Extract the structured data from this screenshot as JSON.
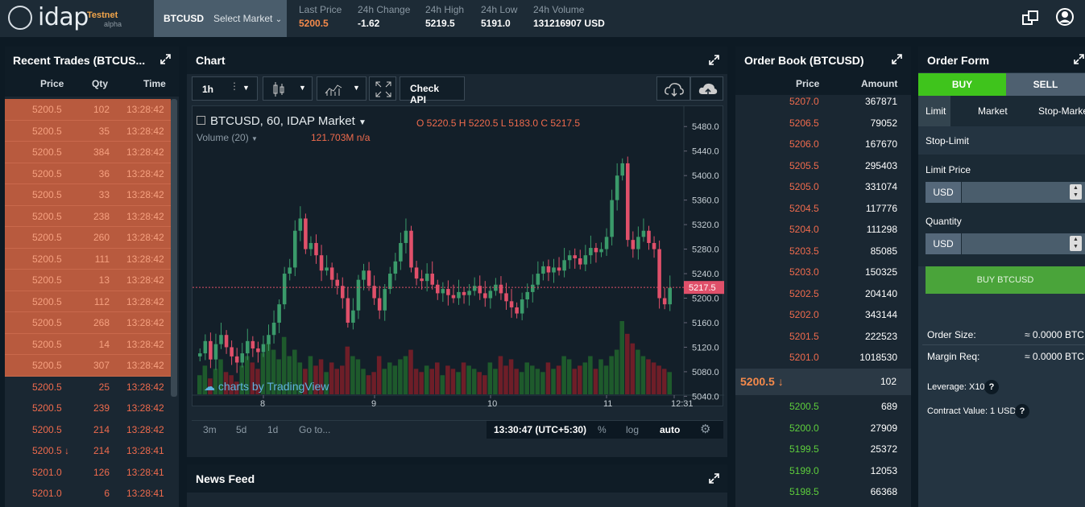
{
  "brand": {
    "name": "idap",
    "badge": "Testnet",
    "sub": "alpha"
  },
  "market": {
    "symbol": "BTCUSD",
    "select_label": "Select Market"
  },
  "stats": [
    {
      "label": "Last Price",
      "value": "5200.5",
      "color": "#f58a4b"
    },
    {
      "label": "24h Change",
      "value": "-1.62",
      "color": "#ffffff"
    },
    {
      "label": "24h High",
      "value": "5219.5",
      "color": "#ffffff"
    },
    {
      "label": "24h Low",
      "value": "5191.0",
      "color": "#ffffff"
    },
    {
      "label": "24h Volume",
      "value": "131216907 USD",
      "color": "#ffffff"
    }
  ],
  "recent_trades": {
    "title": "Recent Trades (BTCUS...",
    "headers": [
      "Price",
      "Qty",
      "Time"
    ],
    "rows": [
      [
        "5200.5",
        "102",
        "13:28:42"
      ],
      [
        "5200.5",
        "35",
        "13:28:42"
      ],
      [
        "5200.5",
        "384",
        "13:28:42"
      ],
      [
        "5200.5",
        "36",
        "13:28:42"
      ],
      [
        "5200.5",
        "33",
        "13:28:42"
      ],
      [
        "5200.5",
        "238",
        "13:28:42"
      ],
      [
        "5200.5",
        "260",
        "13:28:42"
      ],
      [
        "5200.5",
        "111",
        "13:28:42"
      ],
      [
        "5200.5",
        "13",
        "13:28:42"
      ],
      [
        "5200.5",
        "112",
        "13:28:42"
      ],
      [
        "5200.5",
        "268",
        "13:28:42"
      ],
      [
        "5200.5",
        "14",
        "13:28:42"
      ],
      [
        "5200.5",
        "307",
        "13:28:42"
      ],
      [
        "5200.5",
        "25",
        "13:28:42"
      ],
      [
        "5200.5",
        "239",
        "13:28:42"
      ],
      [
        "5200.5",
        "214",
        "13:28:42"
      ],
      [
        "5200.5 ↓",
        "214",
        "13:28:41"
      ],
      [
        "5201.0",
        "126",
        "13:28:41"
      ],
      [
        "5201.0",
        "6",
        "13:28:41"
      ]
    ],
    "highlighted_count": 13
  },
  "chart": {
    "title": "Chart",
    "interval": "1h",
    "check_api": "Check API",
    "legend_symbol": "BTCUSD, 60, IDAP Market",
    "ohlc": "O 5220.5  H 5220.5  L 5183.0  C 5217.5",
    "volume_label": "Volume (20)",
    "volume_value": "121.703M  n/a",
    "watermark": "charts by TradingView",
    "price_ticks": [
      "5480.0",
      "5440.0",
      "5400.0",
      "5360.0",
      "5320.0",
      "5280.0",
      "5240.0",
      "5200.0",
      "5160.0",
      "5120.0",
      "5080.0",
      "5040.0"
    ],
    "current_price": "5217.5",
    "time_ticks": [
      "8",
      "9",
      "10",
      "11",
      "12:31"
    ],
    "ranges": [
      "3m",
      "5d",
      "1d",
      "Go to..."
    ],
    "clock": "13:30:47 (UTC+5:30)",
    "options": [
      "%",
      "log",
      "auto"
    ]
  },
  "news": {
    "title": "News Feed"
  },
  "order_book": {
    "title": "Order Book (BTCUSD)",
    "headers": [
      "Price",
      "Amount"
    ],
    "asks": [
      [
        "5207.0",
        "367871"
      ],
      [
        "5206.5",
        "79052"
      ],
      [
        "5206.0",
        "167670"
      ],
      [
        "5205.5",
        "295403"
      ],
      [
        "5205.0",
        "331074"
      ],
      [
        "5204.5",
        "117776"
      ],
      [
        "5204.0",
        "111298"
      ],
      [
        "5203.5",
        "85085"
      ],
      [
        "5203.0",
        "150325"
      ],
      [
        "5202.5",
        "204140"
      ],
      [
        "5202.0",
        "343144"
      ],
      [
        "5201.5",
        "222523"
      ],
      [
        "5201.0",
        "1018530"
      ]
    ],
    "last": {
      "price": "5200.5 ↓",
      "qty": "102"
    },
    "bids": [
      [
        "5200.5",
        "689"
      ],
      [
        "5200.0",
        "27909"
      ],
      [
        "5199.5",
        "25372"
      ],
      [
        "5199.0",
        "12053"
      ],
      [
        "5198.5",
        "66368"
      ]
    ]
  },
  "order_form": {
    "title": "Order Form",
    "buy": "BUY",
    "sell": "SELL",
    "types": [
      "Limit",
      "Market",
      "Stop-Market",
      "Stop-Limit"
    ],
    "limit_price_label": "Limit Price",
    "quantity_label": "Quantity",
    "unit": "USD",
    "submit": "BUY BTCUSD",
    "order_size_label": "Order Size:",
    "order_size_value": "≈ 0.0000 BTC",
    "margin_label": "Margin Req:",
    "margin_value": "≈ 0.0000 BTC",
    "leverage": "Leverage: X10",
    "contract_value": "Contract Value: 1 USD"
  },
  "chart_data": {
    "type": "candlestick",
    "ylim": [
      5030,
      5500
    ],
    "x_labels": [
      "8",
      "9",
      "10",
      "11",
      "12:31"
    ],
    "closes": [
      5110,
      5130,
      5100,
      5125,
      5140,
      5120,
      5105,
      5095,
      5110,
      5130,
      5118,
      5112,
      5125,
      5140,
      5160,
      5190,
      5240,
      5250,
      5310,
      5330,
      5280,
      5290,
      5270,
      5245,
      5250,
      5230,
      5220,
      5200,
      5160,
      5180,
      5230,
      5245,
      5220,
      5200,
      5180,
      5215,
      5240,
      5260,
      5290,
      5310,
      5250,
      5232,
      5228,
      5240,
      5222,
      5208,
      5215,
      5205,
      5200,
      5210,
      5205,
      5212,
      5220,
      5208,
      5200,
      5212,
      5222,
      5208,
      5195,
      5185,
      5175,
      5198,
      5210,
      5222,
      5240,
      5252,
      5242,
      5250,
      5245,
      5262,
      5270,
      5265,
      5255,
      5270,
      5282,
      5275,
      5280,
      5300,
      5360,
      5400,
      5420,
      5295,
      5280,
      5300,
      5310,
      5290,
      5280,
      5200,
      5190,
      5217
    ],
    "volumes": [
      30,
      45,
      25,
      40,
      55,
      35,
      30,
      20,
      45,
      60,
      50,
      40,
      65,
      80,
      70,
      55,
      90,
      60,
      70,
      50,
      40,
      60,
      45,
      55,
      35,
      50,
      40,
      45,
      75,
      60,
      55,
      40,
      30,
      35,
      60,
      40,
      50,
      45,
      55,
      60,
      70,
      40,
      35,
      45,
      40,
      50,
      30,
      45,
      40,
      35,
      50,
      45,
      40,
      35,
      30,
      50,
      40,
      60,
      45,
      55,
      40,
      35,
      50,
      45,
      40,
      35,
      50,
      40,
      45,
      60,
      55,
      40,
      45,
      50,
      60,
      40,
      55,
      45,
      60,
      70,
      115,
      95,
      80,
      70,
      60,
      55,
      50,
      45,
      40,
      35
    ]
  }
}
